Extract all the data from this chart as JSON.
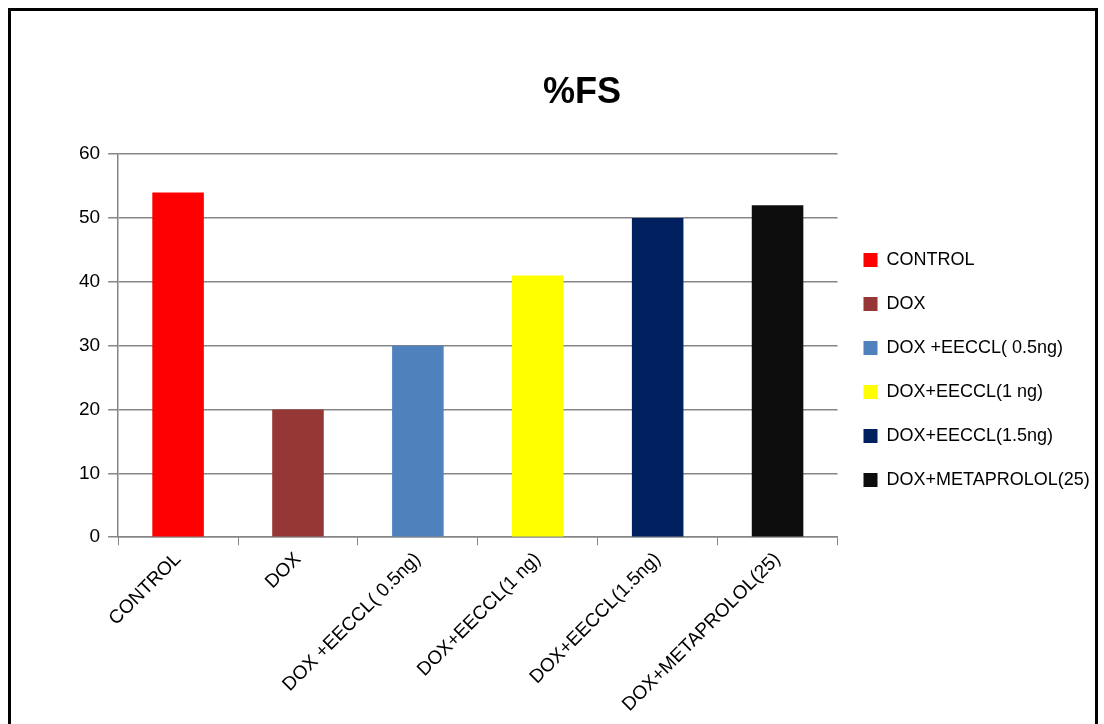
{
  "chart_data": {
    "type": "bar",
    "title": "%FS",
    "categories": [
      "CONTROL",
      "DOX",
      "DOX +EECCL( 0.5ng)",
      "DOX+EECCL(1 ng)",
      "DOX+EECCL(1.5ng)",
      "DOX+METAPROLOL(25)"
    ],
    "series": [
      {
        "name": "CONTROL",
        "color": "#ff0000",
        "values": [
          54,
          null,
          null,
          null,
          null,
          null
        ]
      },
      {
        "name": "DOX",
        "color": "#953735",
        "values": [
          null,
          20,
          null,
          null,
          null,
          null
        ]
      },
      {
        "name": "DOX +EECCL( 0.5ng)",
        "color": "#4f81bd",
        "values": [
          null,
          null,
          30,
          null,
          null,
          null
        ]
      },
      {
        "name": "DOX+EECCL(1 ng)",
        "color": "#ffff00",
        "values": [
          null,
          null,
          null,
          41,
          null,
          null
        ]
      },
      {
        "name": "DOX+EECCL(1.5ng)",
        "color": "#002060",
        "values": [
          null,
          null,
          null,
          null,
          50,
          null
        ]
      },
      {
        "name": "DOX+METAPROLOL(25)",
        "color": "#0d0d0d",
        "values": [
          null,
          null,
          null,
          null,
          null,
          52
        ]
      }
    ],
    "ylim": [
      0,
      60
    ],
    "yticks": [
      0,
      10,
      20,
      30,
      40,
      50,
      60
    ],
    "grid": "y",
    "legend": "right"
  }
}
